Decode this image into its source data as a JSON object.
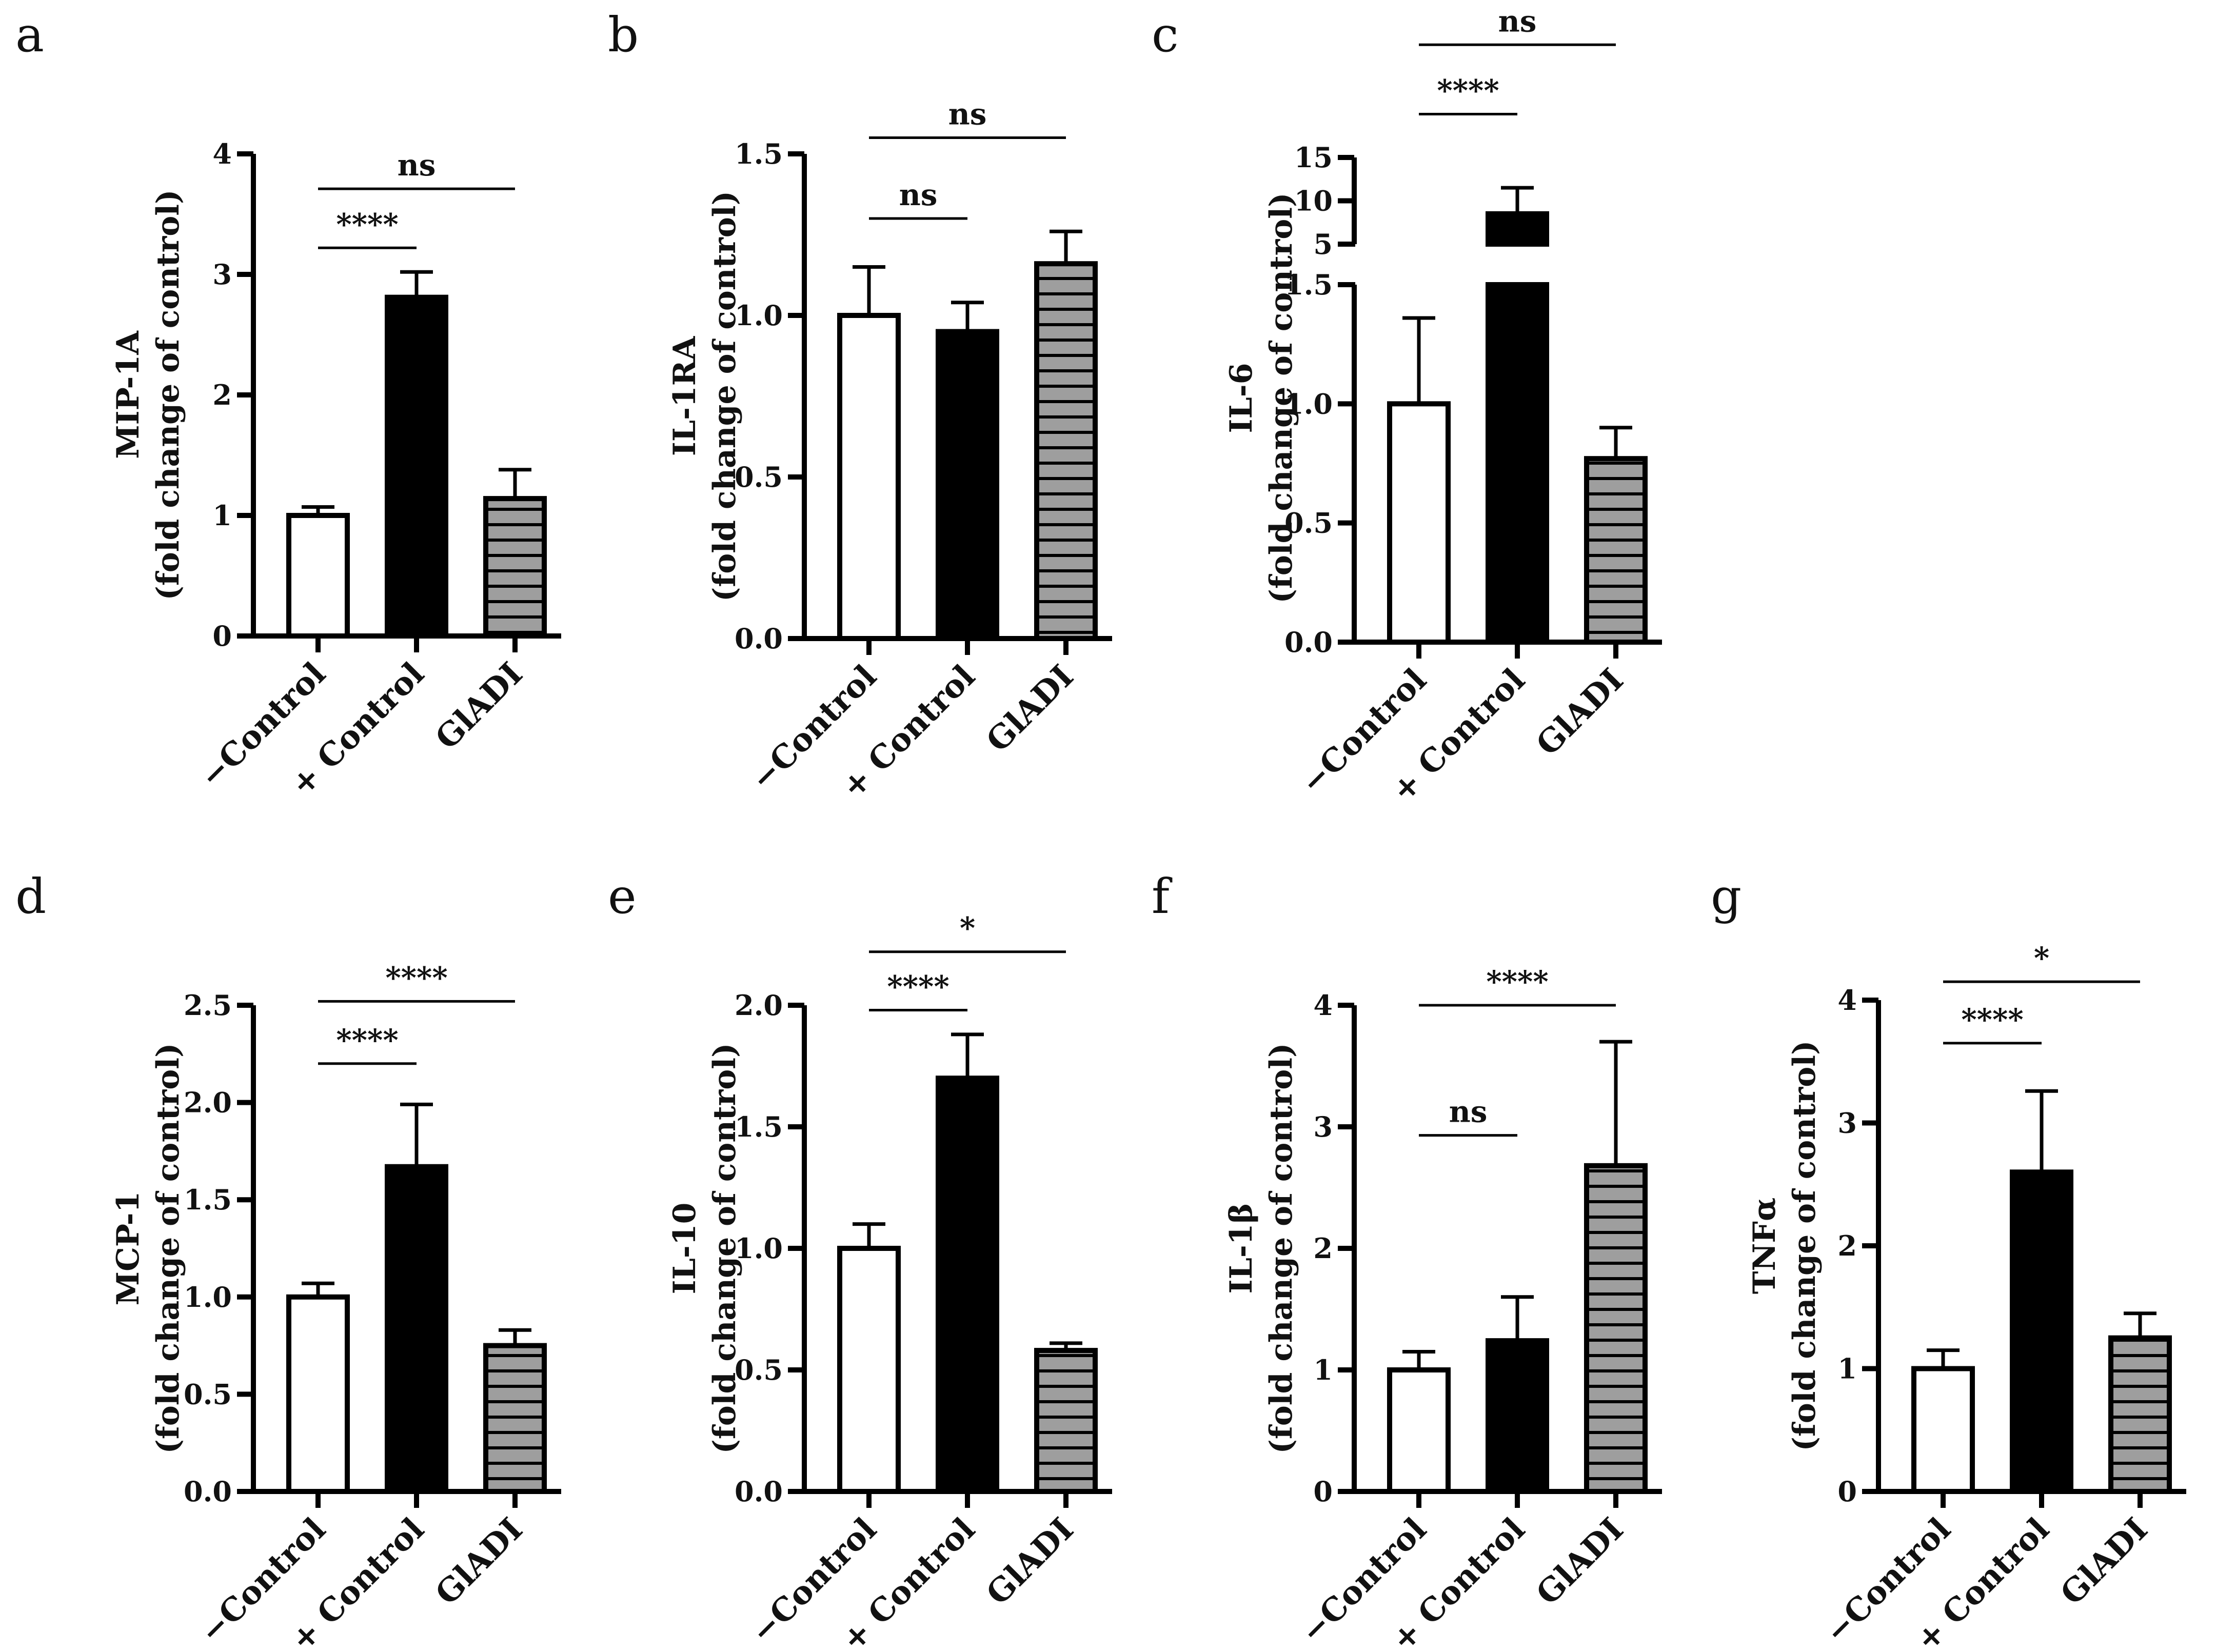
{
  "colors": {
    "neg_control_fill": "#ffffff",
    "pos_control_fill": "#000000",
    "gladi_fill": "#9e9e9e",
    "gladi_stripe": "#000000",
    "axis": "#000000"
  },
  "chart_data": [
    {
      "panel": "a",
      "type": "bar",
      "ylabel_line1": "MIP-1A",
      "ylabel_line2": "(fold change of control)",
      "categories": [
        "−Control",
        "+ Control",
        "GlADI"
      ],
      "values": [
        1.0,
        2.81,
        1.14
      ],
      "errors": [
        0.07,
        0.21,
        0.24
      ],
      "ylim": [
        0,
        4
      ],
      "ticks": [
        0,
        1,
        2,
        3,
        4
      ],
      "tick_labels": [
        "0",
        "1",
        "2",
        "3",
        "4"
      ],
      "significance": [
        {
          "from": 0,
          "to": 1,
          "label": "****",
          "level": 3.22
        },
        {
          "from": 0,
          "to": 2,
          "label": "ns",
          "level": 3.71
        }
      ]
    },
    {
      "panel": "b",
      "type": "bar",
      "ylabel_line1": "IL-1RA",
      "ylabel_line2": "(fold change of control)",
      "categories": [
        "−Control",
        "+ Control",
        "GlADI"
      ],
      "values": [
        1.0,
        0.95,
        1.16
      ],
      "errors": [
        0.15,
        0.09,
        0.1
      ],
      "ylim": [
        0,
        1.5
      ],
      "ticks": [
        0,
        0.5,
        1.0,
        1.5
      ],
      "tick_labels": [
        "0.0",
        "0.5",
        "1.0",
        "1.5"
      ],
      "significance": [
        {
          "from": 0,
          "to": 1,
          "label": "ns",
          "level": 1.3
        },
        {
          "from": 0,
          "to": 2,
          "label": "ns",
          "level": 1.55
        }
      ]
    },
    {
      "panel": "c",
      "type": "bar",
      "broken_axis": true,
      "ylabel_line1": "IL-6",
      "ylabel_line2": "(fold change of control)",
      "categories": [
        "−Control",
        "+ Control",
        "GlADI"
      ],
      "values": [
        1.0,
        8.5,
        0.77
      ],
      "errors": [
        0.36,
        3.0,
        0.13
      ],
      "ylim_lower": [
        0,
        1.5
      ],
      "ylim_upper": [
        5,
        15
      ],
      "ticks_lower": [
        0,
        0.5,
        1.0,
        1.5
      ],
      "tick_labels_lower": [
        "0.0",
        "0.5",
        "1.0",
        "1.5"
      ],
      "ticks_upper": [
        5,
        10,
        15
      ],
      "tick_labels_upper": [
        "5",
        "10",
        "15"
      ],
      "significance": [
        {
          "from": 0,
          "to": 1,
          "label": "****",
          "level": 20
        },
        {
          "from": 0,
          "to": 2,
          "label": "ns",
          "level": 28
        }
      ]
    },
    {
      "panel": "d",
      "type": "bar",
      "ylabel_line1": "MCP-1",
      "ylabel_line2": "(fold change of control)",
      "categories": [
        "−Control",
        "+ Control",
        "GlADI"
      ],
      "values": [
        1.0,
        1.67,
        0.75
      ],
      "errors": [
        0.07,
        0.32,
        0.08
      ],
      "ylim": [
        0,
        2.5
      ],
      "ticks": [
        0,
        0.5,
        1.0,
        1.5,
        2.0,
        2.5
      ],
      "tick_labels": [
        "0.0",
        "0.5",
        "1.0",
        "1.5",
        "2.0",
        "2.5"
      ],
      "significance": [
        {
          "from": 0,
          "to": 1,
          "label": "****",
          "level": 2.2
        },
        {
          "from": 0,
          "to": 2,
          "label": "****",
          "level": 2.52
        }
      ]
    },
    {
      "panel": "e",
      "type": "bar",
      "ylabel_line1": "IL-10",
      "ylabel_line2": "(fold change of control)",
      "categories": [
        "−Control",
        "+ Control",
        "GlADI"
      ],
      "values": [
        1.0,
        1.7,
        0.58
      ],
      "errors": [
        0.1,
        0.18,
        0.03
      ],
      "ylim": [
        0,
        2.0
      ],
      "ticks": [
        0,
        0.5,
        1.0,
        1.5,
        2.0
      ],
      "tick_labels": [
        "0.0",
        "0.5",
        "1.0",
        "1.5",
        "2.0"
      ],
      "significance": [
        {
          "from": 0,
          "to": 1,
          "label": "****",
          "level": 1.98
        },
        {
          "from": 0,
          "to": 2,
          "label": "*",
          "level": 2.22
        }
      ]
    },
    {
      "panel": "f",
      "type": "bar",
      "ylabel_line1": "IL-1β",
      "ylabel_line2": "(fold change of control)",
      "categories": [
        "−Control",
        "+ Control",
        "GlADI"
      ],
      "values": [
        1.0,
        1.24,
        2.68
      ],
      "errors": [
        0.15,
        0.36,
        1.02
      ],
      "ylim": [
        0,
        4
      ],
      "ticks": [
        0,
        1,
        2,
        3,
        4
      ],
      "tick_labels": [
        "0",
        "1",
        "2",
        "3",
        "4"
      ],
      "significance": [
        {
          "from": 0,
          "to": 1,
          "label": "ns",
          "level": 2.93
        },
        {
          "from": 0,
          "to": 2,
          "label": "****",
          "level": 4.0
        }
      ]
    },
    {
      "panel": "g",
      "type": "bar",
      "ylabel_line1": "TNFα",
      "ylabel_line2": "(fold change of control)",
      "categories": [
        "−Control",
        "+ Control",
        "GlADI"
      ],
      "values": [
        1.0,
        2.6,
        1.25
      ],
      "errors": [
        0.15,
        0.66,
        0.2
      ],
      "ylim": [
        0,
        4
      ],
      "ticks": [
        0,
        1,
        2,
        3,
        4
      ],
      "tick_labels": [
        "0",
        "1",
        "2",
        "3",
        "4"
      ],
      "significance": [
        {
          "from": 0,
          "to": 1,
          "label": "****",
          "level": 3.65
        },
        {
          "from": 0,
          "to": 2,
          "label": "*",
          "level": 4.15
        }
      ]
    }
  ]
}
